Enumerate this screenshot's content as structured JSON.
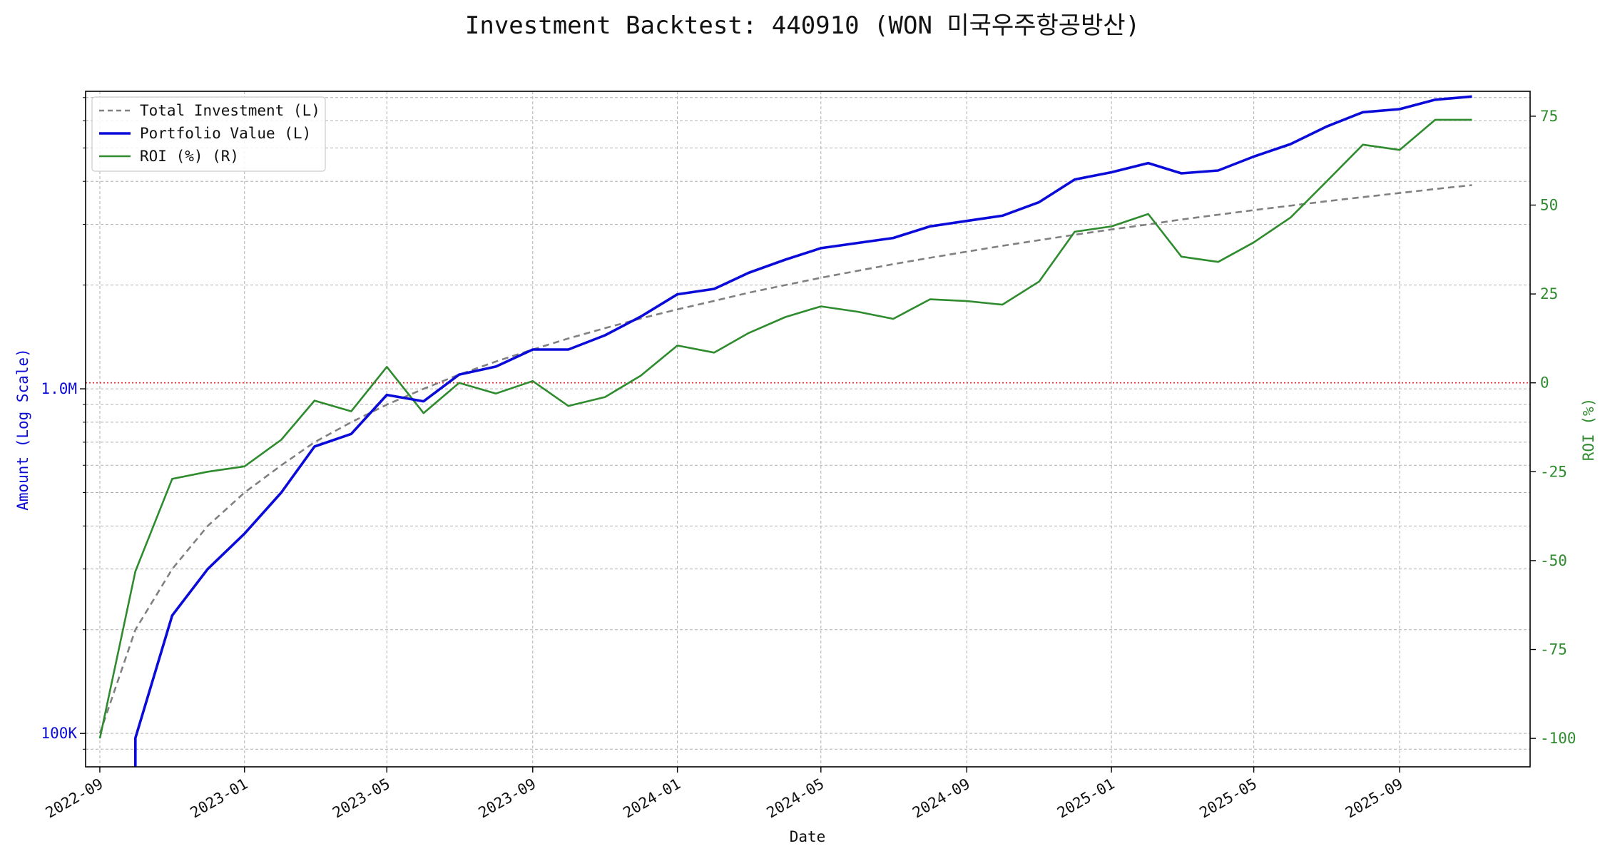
{
  "chart_data": {
    "type": "line",
    "title": "Investment Backtest: 440910 (WON 미국우주항공방산)",
    "xlabel": "Date",
    "ylabel_left": "Amount (Log Scale)",
    "ylabel_right": "ROI (%)",
    "y_left_scale": "log",
    "y_left_range": [
      80000,
      7300000
    ],
    "y_right_range": [
      -108,
      82
    ],
    "x_range": [
      "2022-08-20",
      "2025-12-20"
    ],
    "x_ticks": [
      "2022-09",
      "2023-01",
      "2023-05",
      "2023-09",
      "2024-01",
      "2024-05",
      "2024-09",
      "2025-01",
      "2025-05",
      "2025-09"
    ],
    "y_left_ticks": [
      {
        "value": 100000,
        "label": "100K"
      },
      {
        "value": 1000000,
        "label": "1.0M"
      }
    ],
    "y_right_ticks": [
      -100,
      -75,
      -50,
      -25,
      0,
      25,
      50,
      75
    ],
    "grid": true,
    "legend_position": "top-left",
    "reference_line": {
      "axis": "right",
      "value": 0,
      "color": "#e8202a",
      "style": "dotted"
    },
    "series": [
      {
        "name": "Total Investment (L)",
        "axis": "left",
        "color": "#808080",
        "style": "dashed",
        "points": [
          [
            "2022-09-01",
            100000
          ],
          [
            "2022-10-01",
            200000
          ],
          [
            "2022-11-01",
            300000
          ],
          [
            "2022-12-01",
            400000
          ],
          [
            "2023-01-01",
            500000
          ],
          [
            "2023-02-01",
            600000
          ],
          [
            "2023-03-01",
            700000
          ],
          [
            "2023-04-01",
            800000
          ],
          [
            "2023-05-01",
            900000
          ],
          [
            "2023-06-01",
            1000000
          ],
          [
            "2023-07-01",
            1100000
          ],
          [
            "2023-08-01",
            1200000
          ],
          [
            "2023-09-01",
            1300000
          ],
          [
            "2023-10-01",
            1400000
          ],
          [
            "2023-11-01",
            1500000
          ],
          [
            "2023-12-01",
            1600000
          ],
          [
            "2024-01-01",
            1700000
          ],
          [
            "2024-02-01",
            1800000
          ],
          [
            "2024-03-01",
            1900000
          ],
          [
            "2024-04-01",
            2000000
          ],
          [
            "2024-05-01",
            2100000
          ],
          [
            "2024-06-01",
            2200000
          ],
          [
            "2024-07-01",
            2300000
          ],
          [
            "2024-08-01",
            2400000
          ],
          [
            "2024-09-01",
            2500000
          ],
          [
            "2024-10-01",
            2600000
          ],
          [
            "2024-11-01",
            2700000
          ],
          [
            "2024-12-01",
            2800000
          ],
          [
            "2025-01-01",
            2900000
          ],
          [
            "2025-02-01",
            3000000
          ],
          [
            "2025-03-01",
            3100000
          ],
          [
            "2025-04-01",
            3200000
          ],
          [
            "2025-05-01",
            3300000
          ],
          [
            "2025-06-01",
            3400000
          ],
          [
            "2025-07-01",
            3500000
          ],
          [
            "2025-08-01",
            3600000
          ],
          [
            "2025-09-01",
            3700000
          ],
          [
            "2025-10-01",
            3800000
          ],
          [
            "2025-11-01",
            3900000
          ]
        ]
      },
      {
        "name": "Portfolio Value (L)",
        "axis": "left",
        "color": "#0b0bd9",
        "style": "solid",
        "points": [
          [
            "2022-10-01",
            80000
          ],
          [
            "2022-10-01",
            97000
          ],
          [
            "2022-11-01",
            220000
          ],
          [
            "2022-12-01",
            300000
          ],
          [
            "2023-01-01",
            380000
          ],
          [
            "2023-02-01",
            500000
          ],
          [
            "2023-03-01",
            680000
          ],
          [
            "2023-04-01",
            740000
          ],
          [
            "2023-05-01",
            960000
          ],
          [
            "2023-06-01",
            920000
          ],
          [
            "2023-07-01",
            1100000
          ],
          [
            "2023-08-01",
            1160000
          ],
          [
            "2023-09-01",
            1300000
          ],
          [
            "2023-10-01",
            1300000
          ],
          [
            "2023-11-01",
            1430000
          ],
          [
            "2023-12-01",
            1620000
          ],
          [
            "2024-01-01",
            1880000
          ],
          [
            "2024-02-01",
            1950000
          ],
          [
            "2024-03-01",
            2170000
          ],
          [
            "2024-04-01",
            2370000
          ],
          [
            "2024-05-01",
            2560000
          ],
          [
            "2024-06-01",
            2650000
          ],
          [
            "2024-07-01",
            2740000
          ],
          [
            "2024-08-01",
            2960000
          ],
          [
            "2024-09-01",
            3070000
          ],
          [
            "2024-10-01",
            3180000
          ],
          [
            "2024-11-01",
            3480000
          ],
          [
            "2024-12-01",
            4050000
          ],
          [
            "2025-01-01",
            4250000
          ],
          [
            "2025-02-01",
            4520000
          ],
          [
            "2025-03-01",
            4220000
          ],
          [
            "2025-04-01",
            4300000
          ],
          [
            "2025-05-01",
            4720000
          ],
          [
            "2025-06-01",
            5130000
          ],
          [
            "2025-07-01",
            5760000
          ],
          [
            "2025-08-01",
            6350000
          ],
          [
            "2025-09-01",
            6480000
          ],
          [
            "2025-10-01",
            6900000
          ],
          [
            "2025-11-01",
            7050000
          ]
        ]
      },
      {
        "name": "ROI (%) (R)",
        "axis": "right",
        "color": "#2e8b2e",
        "style": "solid",
        "points": [
          [
            "2022-09-01",
            -100
          ],
          [
            "2022-10-01",
            -53
          ],
          [
            "2022-11-01",
            -27
          ],
          [
            "2022-12-01",
            -25
          ],
          [
            "2023-01-01",
            -23.5
          ],
          [
            "2023-02-01",
            -16
          ],
          [
            "2023-03-01",
            -5
          ],
          [
            "2023-04-01",
            -8
          ],
          [
            "2023-05-01",
            4.5
          ],
          [
            "2023-06-01",
            -8.5
          ],
          [
            "2023-07-01",
            0
          ],
          [
            "2023-08-01",
            -3
          ],
          [
            "2023-09-01",
            0.5
          ],
          [
            "2023-10-01",
            -6.5
          ],
          [
            "2023-11-01",
            -4
          ],
          [
            "2023-12-01",
            2
          ],
          [
            "2024-01-01",
            10.5
          ],
          [
            "2024-02-01",
            8.5
          ],
          [
            "2024-03-01",
            14
          ],
          [
            "2024-04-01",
            18.5
          ],
          [
            "2024-05-01",
            21.5
          ],
          [
            "2024-06-01",
            20
          ],
          [
            "2024-07-01",
            18
          ],
          [
            "2024-08-01",
            23.5
          ],
          [
            "2024-09-01",
            23
          ],
          [
            "2024-10-01",
            22
          ],
          [
            "2024-11-01",
            28.5
          ],
          [
            "2024-12-01",
            42.5
          ],
          [
            "2025-01-01",
            44
          ],
          [
            "2025-02-01",
            47.5
          ],
          [
            "2025-03-01",
            35.5
          ],
          [
            "2025-04-01",
            34
          ],
          [
            "2025-05-01",
            39.5
          ],
          [
            "2025-06-01",
            46.5
          ],
          [
            "2025-07-01",
            56.5
          ],
          [
            "2025-08-01",
            67
          ],
          [
            "2025-09-01",
            65.5
          ],
          [
            "2025-10-01",
            74
          ],
          [
            "2025-11-01",
            74
          ]
        ]
      }
    ]
  }
}
